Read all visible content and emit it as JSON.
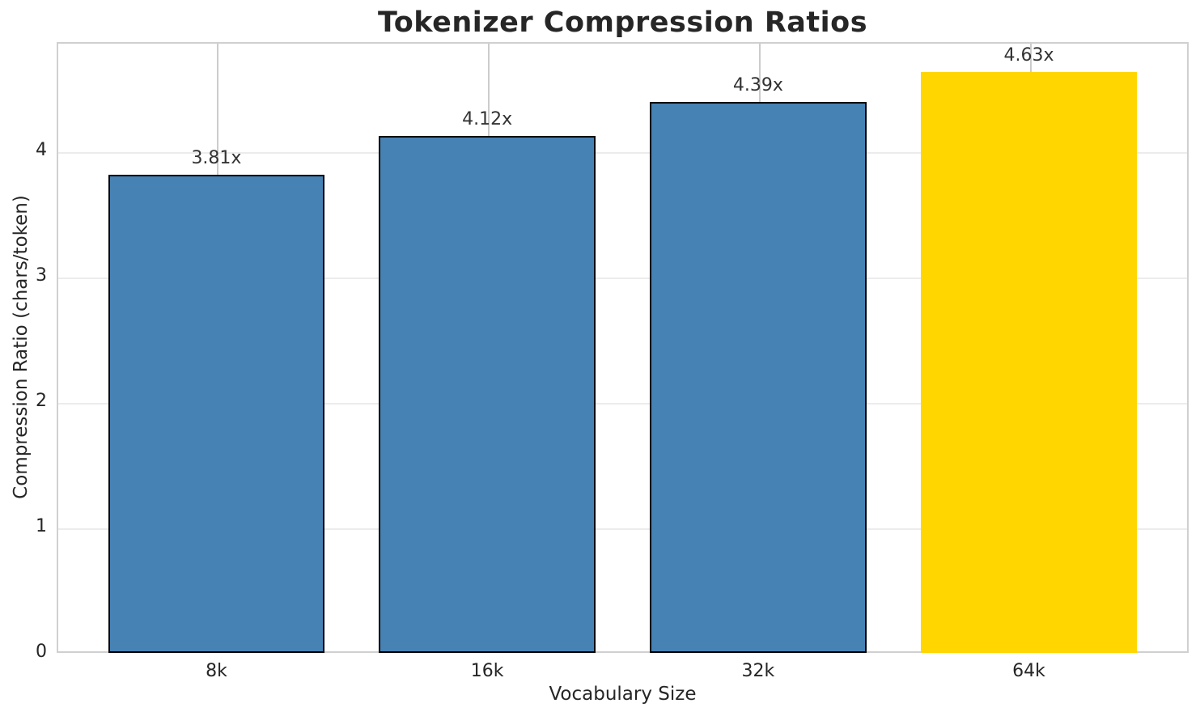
{
  "figure": {
    "title": "Tokenizer Compression Ratios",
    "background_color": "#ffffff",
    "text_color": "#262626"
  },
  "chart_data": {
    "type": "bar",
    "title": "Tokenizer Compression Ratios",
    "xlabel": "Vocabulary Size",
    "ylabel": "Compression Ratio (chars/token)",
    "categories": [
      "8k",
      "16k",
      "32k",
      "64k"
    ],
    "values": [
      3.81,
      4.12,
      4.39,
      4.63
    ],
    "bar_labels": [
      "3.81x",
      "4.12x",
      "4.39x",
      "4.63x"
    ],
    "yticks": [
      0,
      1,
      2,
      3,
      4
    ],
    "ylim": [
      0,
      4.87
    ],
    "grid": true,
    "legend_position": "none",
    "highlight_category": "64k",
    "colors": {
      "bar_colors": [
        "#4682B4",
        "#4682B4",
        "#4682B4",
        "#FFD600"
      ],
      "bar_edge_colors": [
        "#000000",
        "#000000",
        "#000000",
        "none"
      ],
      "h_gridline": "#ececec",
      "v_gridline": "#cccccc",
      "spine": "#d0d0d0",
      "label_text": "#333333",
      "tick_text": "#262626"
    }
  }
}
